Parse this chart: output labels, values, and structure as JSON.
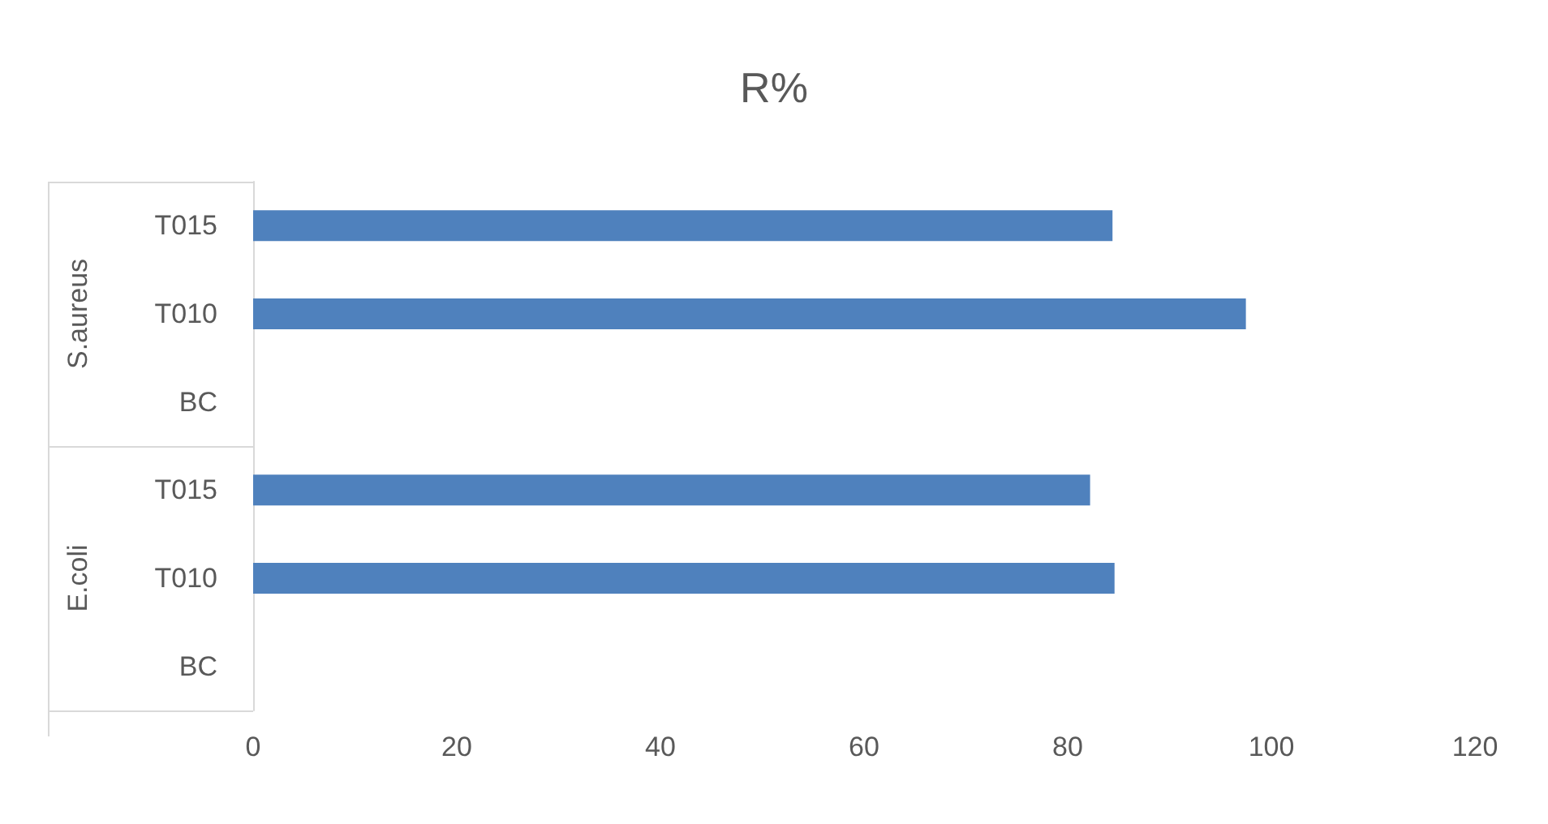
{
  "chart_data": {
    "type": "bar",
    "orientation": "horizontal",
    "title": "R%",
    "categories": [
      "T015",
      "T010",
      "BC",
      "T015",
      "T010",
      "BC"
    ],
    "values": [
      84.4,
      97.5,
      0,
      82.2,
      84.6,
      0
    ],
    "color": "#4f81bd",
    "xlim": [
      0,
      120
    ],
    "xticks": [
      0,
      20,
      40,
      60,
      80,
      100,
      120
    ],
    "annotations": [
      "S.aureus",
      "E.coli"
    ]
  }
}
